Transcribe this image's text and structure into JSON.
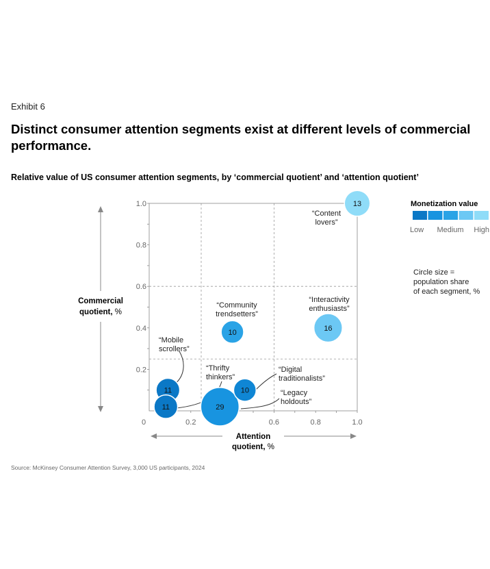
{
  "header": {
    "exhibit": "Exhibit 6",
    "title": "Distinct consumer attention segments exist at different levels of commercial performance.",
    "subtitle": "Relative value of US consumer attention segments, by ‘commercial quotient’ and ‘attention quotient’"
  },
  "source": "Source: McKinsey Consumer Attention Survey, 3,000 US participants, 2024",
  "chart_data": {
    "type": "scatter",
    "subtitle": "Relative value of US consumer attention segments, by ‘commercial quotient’ and ‘attention quotient’",
    "xlabel_line1": "Attention",
    "xlabel_line2": "quotient, %",
    "ylabel_line1": "Commercial",
    "ylabel_line2": "quotient, %",
    "xlim": [
      0,
      1.0
    ],
    "ylim": [
      0,
      1.0
    ],
    "origin_label": "0",
    "x_ticks": [
      {
        "value": 0.2,
        "label": "0.2"
      },
      {
        "value": 0.6,
        "label": "0.6"
      },
      {
        "value": 0.8,
        "label": "0.8"
      },
      {
        "value": 1.0,
        "label": "1.0"
      }
    ],
    "y_ticks": [
      {
        "value": 0.2,
        "label": "0.2"
      },
      {
        "value": 0.4,
        "label": "0.4"
      },
      {
        "value": 0.6,
        "label": "0.6"
      },
      {
        "value": 0.8,
        "label": "0.8"
      },
      {
        "value": 1.0,
        "label": "1.0"
      }
    ],
    "grid_x": [
      0.25,
      0.6
    ],
    "grid_y": [
      0.25,
      0.6
    ],
    "points": [
      {
        "name": [
          "“Content",
          "lovers”"
        ],
        "x": 1.0,
        "y": 1.0,
        "size": 13,
        "color": "#8fdcf8"
      },
      {
        "name": [
          "“Community",
          "trendsetters”"
        ],
        "x": 0.4,
        "y": 0.38,
        "size": 10,
        "color": "#2aa3e6"
      },
      {
        "name": [
          "“Interactivity",
          "enthusiasts”"
        ],
        "x": 0.86,
        "y": 0.4,
        "size": 16,
        "color": "#6cc8f4"
      },
      {
        "name": [
          "“Mobile",
          "scrollers”"
        ],
        "x": 0.09,
        "y": 0.1,
        "size": 11,
        "color": "#0b78c6"
      },
      {
        "name": [
          "“Thrifty",
          "thinkers”"
        ],
        "x": 0.08,
        "y": 0.02,
        "size": 11,
        "color": "#0b78c6"
      },
      {
        "name": [
          "“Digital",
          "traditionalists”"
        ],
        "x": 0.46,
        "y": 0.1,
        "size": 10,
        "color": "#0f86d4"
      },
      {
        "name": [
          "“Legacy",
          "holdouts”"
        ],
        "x": 0.34,
        "y": 0.02,
        "size": 29,
        "color": "#1894e0"
      }
    ],
    "legend": {
      "title": "Monetization value",
      "colors": [
        "#0b78c6",
        "#1894e0",
        "#2aa3e6",
        "#6cc8f4",
        "#8fdcf8"
      ],
      "labels": [
        "Low",
        "Medium",
        "High"
      ]
    },
    "size_note": [
      "Circle size =",
      "population share",
      "of each segment, %"
    ]
  }
}
